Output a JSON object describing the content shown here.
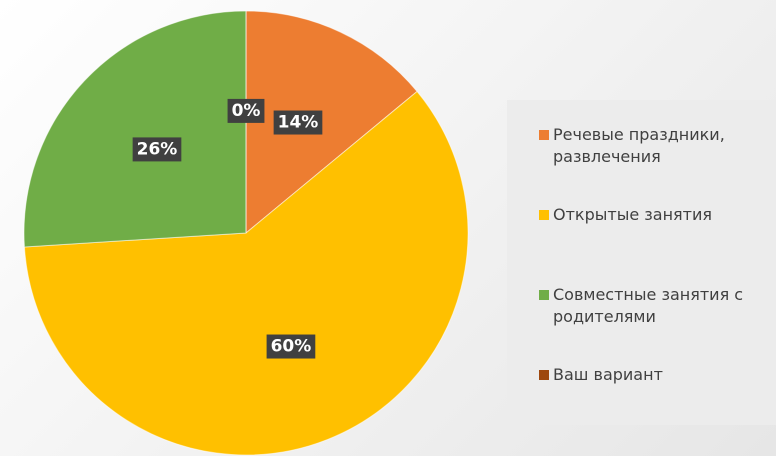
{
  "chart_data": {
    "type": "pie",
    "categories": [
      "Речевые праздники, развлечения",
      "Открытые занятия",
      "Совместные занятия с родителями",
      "Ваш вариант"
    ],
    "values": [
      14,
      60,
      26,
      0
    ],
    "value_labels": [
      "14%",
      "60%",
      "26%",
      "0%"
    ],
    "colors": [
      "#ed7d31",
      "#ffc000",
      "#70ad47",
      "#9e480e"
    ]
  }
}
